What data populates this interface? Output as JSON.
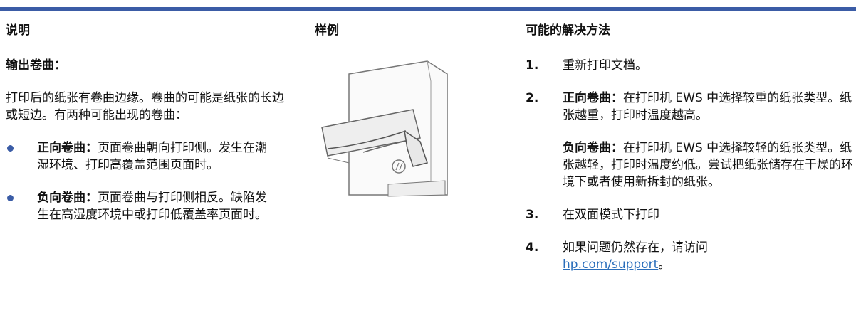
{
  "table": {
    "headers": [
      "说明",
      "样例",
      "可能的解决方法"
    ],
    "description": {
      "title": "输出卷曲：",
      "text": "打印后的纸张有卷曲边缘。卷曲的可能是纸张的长边或短边。有两种可能出现的卷曲：",
      "bullets": [
        {
          "term": "正向卷曲：",
          "text": "页面卷曲朝向打印侧。发生在潮湿环境、打印高覆盖范围页面时。"
        },
        {
          "term": "负向卷曲：",
          "text": "页面卷曲与打印侧相反。缺陷发生在高湿度环境中或打印低覆盖率页面时。"
        }
      ]
    },
    "solutions": [
      {
        "number": "1.",
        "text": "重新打印文档。"
      },
      {
        "number": "2.",
        "paragraphs": [
          {
            "term": "正向卷曲：",
            "text": "在打印机 EWS 中选择较重的纸张类型。纸张越重，打印时温度越高。"
          },
          {
            "term": "负向卷曲：",
            "text": "在打印机 EWS 中选择较轻的纸张类型。纸张越轻，打印时温度约低。尝试把纸张储存在干燥的环境下或者使用新拆封的纸张。"
          }
        ]
      },
      {
        "number": "3.",
        "text": "在双面模式下打印"
      },
      {
        "number": "4.",
        "text": "如果问题仍然存在，请访问 ",
        "link": "hp.com/support",
        "end": "。"
      }
    ]
  }
}
